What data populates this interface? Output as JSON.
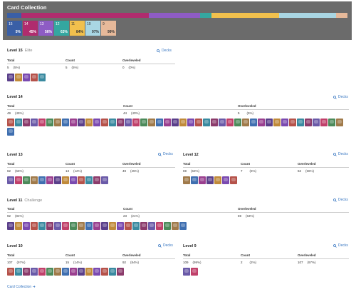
{
  "app": {
    "title": "Card Collection"
  },
  "progress_segments": [
    {
      "color": "#3a5fa6",
      "weight": 5
    },
    {
      "color": "#b02c6e",
      "weight": 45
    },
    {
      "color": "#8e5cc4",
      "weight": 18
    },
    {
      "color": "#34a7a0",
      "weight": 4
    },
    {
      "color": "#f1c04d",
      "weight": 24
    },
    {
      "color": "#a9d6e3",
      "weight": 20
    },
    {
      "color": "#e6b99a",
      "weight": 4
    }
  ],
  "chips": [
    {
      "level": "15",
      "pct": "5%",
      "color": "#3a5fa6",
      "light": false
    },
    {
      "level": "14",
      "pct": "45%",
      "color": "#b02c6e",
      "light": false
    },
    {
      "level": "13",
      "pct": "56%",
      "color": "#8e5cc4",
      "light": false
    },
    {
      "level": "12",
      "pct": "63%",
      "color": "#34a7a0",
      "light": false
    },
    {
      "level": "11",
      "pct": "84%",
      "color": "#f1c04d",
      "light": true
    },
    {
      "level": "10",
      "pct": "97%",
      "color": "#a9d6e3",
      "light": true
    },
    {
      "level": "9",
      "pct": "99%",
      "color": "#e6b99a",
      "light": true
    }
  ],
  "labels": {
    "total": "Total",
    "count": "Count",
    "overleveled": "Overleveled",
    "decks": "Decks"
  },
  "levels": {
    "l15": {
      "title": "Level 15",
      "subtitle": "Elite",
      "total": "5",
      "total_pct": "(5%)",
      "count": "5",
      "count_pct": "(5%)",
      "over": "0",
      "over_pct": "(0%)"
    },
    "l14": {
      "title": "Level 14",
      "total": "49",
      "total_pct": "(45%)",
      "count": "44",
      "count_pct": "(40%)",
      "over": "5",
      "over_pct": "(5%)"
    },
    "l13": {
      "title": "Level 13",
      "total": "62",
      "total_pct": "(56%)",
      "count": "13",
      "count_pct": "(12%)",
      "over": "49",
      "over_pct": "(45%)"
    },
    "l12": {
      "title": "Level 12",
      "total": "69",
      "total_pct": "(63%)",
      "count": "7",
      "count_pct": "(6%)",
      "over": "62",
      "over_pct": "(56%)"
    },
    "l11": {
      "title": "Level 11",
      "subtitle": "Challenge",
      "total": "92",
      "total_pct": "(84%)",
      "count": "23",
      "count_pct": "(21%)",
      "over": "69",
      "over_pct": "(63%)"
    },
    "l10": {
      "title": "Level 10",
      "total": "107",
      "total_pct": "(97%)",
      "count": "15",
      "count_pct": "(14%)",
      "over": "92",
      "over_pct": "(84%)"
    },
    "l9": {
      "title": "Level 9",
      "total": "109",
      "total_pct": "(99%)",
      "count": "2",
      "count_pct": "(2%)",
      "over": "107",
      "over_pct": "(97%)"
    }
  },
  "card_counts": {
    "l15": 5,
    "l14": 44,
    "l13": 13,
    "l12": 7,
    "l11": 23,
    "l10": 15,
    "l9": 2
  },
  "card_palette": [
    "#5a3f8a",
    "#8b3b6b",
    "#3f6fb0",
    "#b5524a",
    "#4c8a5a",
    "#c08a3a",
    "#6a5aa8",
    "#9a3f8f",
    "#3a8aa0",
    "#a07a4a",
    "#7a4ab0",
    "#c0406a"
  ],
  "footer": {
    "link": "Card Collection"
  },
  "icons": {
    "decks_icon": "search-icon",
    "footer_icon": "arrow-right-icon"
  }
}
